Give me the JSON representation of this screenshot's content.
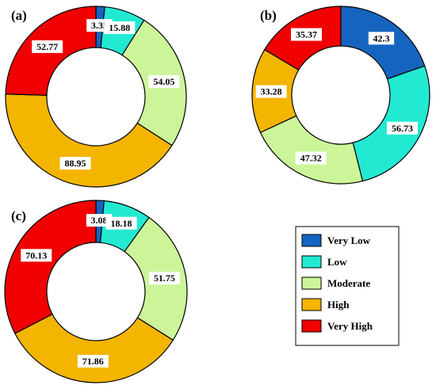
{
  "legend": {
    "items": [
      {
        "label": "Very Low",
        "color": "#1565c0"
      },
      {
        "label": "Low",
        "color": "#22ead2"
      },
      {
        "label": "Moderate",
        "color": "#ccf59a"
      },
      {
        "label": "High",
        "color": "#f3b500"
      },
      {
        "label": "Very High",
        "color": "#f00000"
      }
    ]
  },
  "chart_data": [
    {
      "type": "pie",
      "style": "donut",
      "panel": "(a)",
      "categories": [
        "Very Low",
        "Low",
        "Moderate",
        "High",
        "Very High"
      ],
      "values": [
        3.35,
        15.88,
        54.05,
        88.95,
        52.77
      ],
      "labels": [
        "3.35",
        "15.88",
        "54.05",
        "88.95",
        "52.77"
      ]
    },
    {
      "type": "pie",
      "style": "donut",
      "panel": "(b)",
      "categories": [
        "Very Low",
        "Low",
        "Moderate",
        "High",
        "Very High"
      ],
      "values": [
        42.3,
        56.73,
        47.32,
        33.28,
        35.37
      ],
      "labels": [
        "42.3",
        "56.73",
        "47.32",
        "33.28",
        "35.37"
      ]
    },
    {
      "type": "pie",
      "style": "donut",
      "panel": "(c)",
      "categories": [
        "Very Low",
        "Low",
        "Moderate",
        "High",
        "Very High"
      ],
      "values": [
        3.08,
        18.18,
        51.75,
        71.86,
        70.13
      ],
      "labels": [
        "3.08",
        "18.18",
        "51.75",
        "71.86",
        "70.13"
      ]
    }
  ]
}
